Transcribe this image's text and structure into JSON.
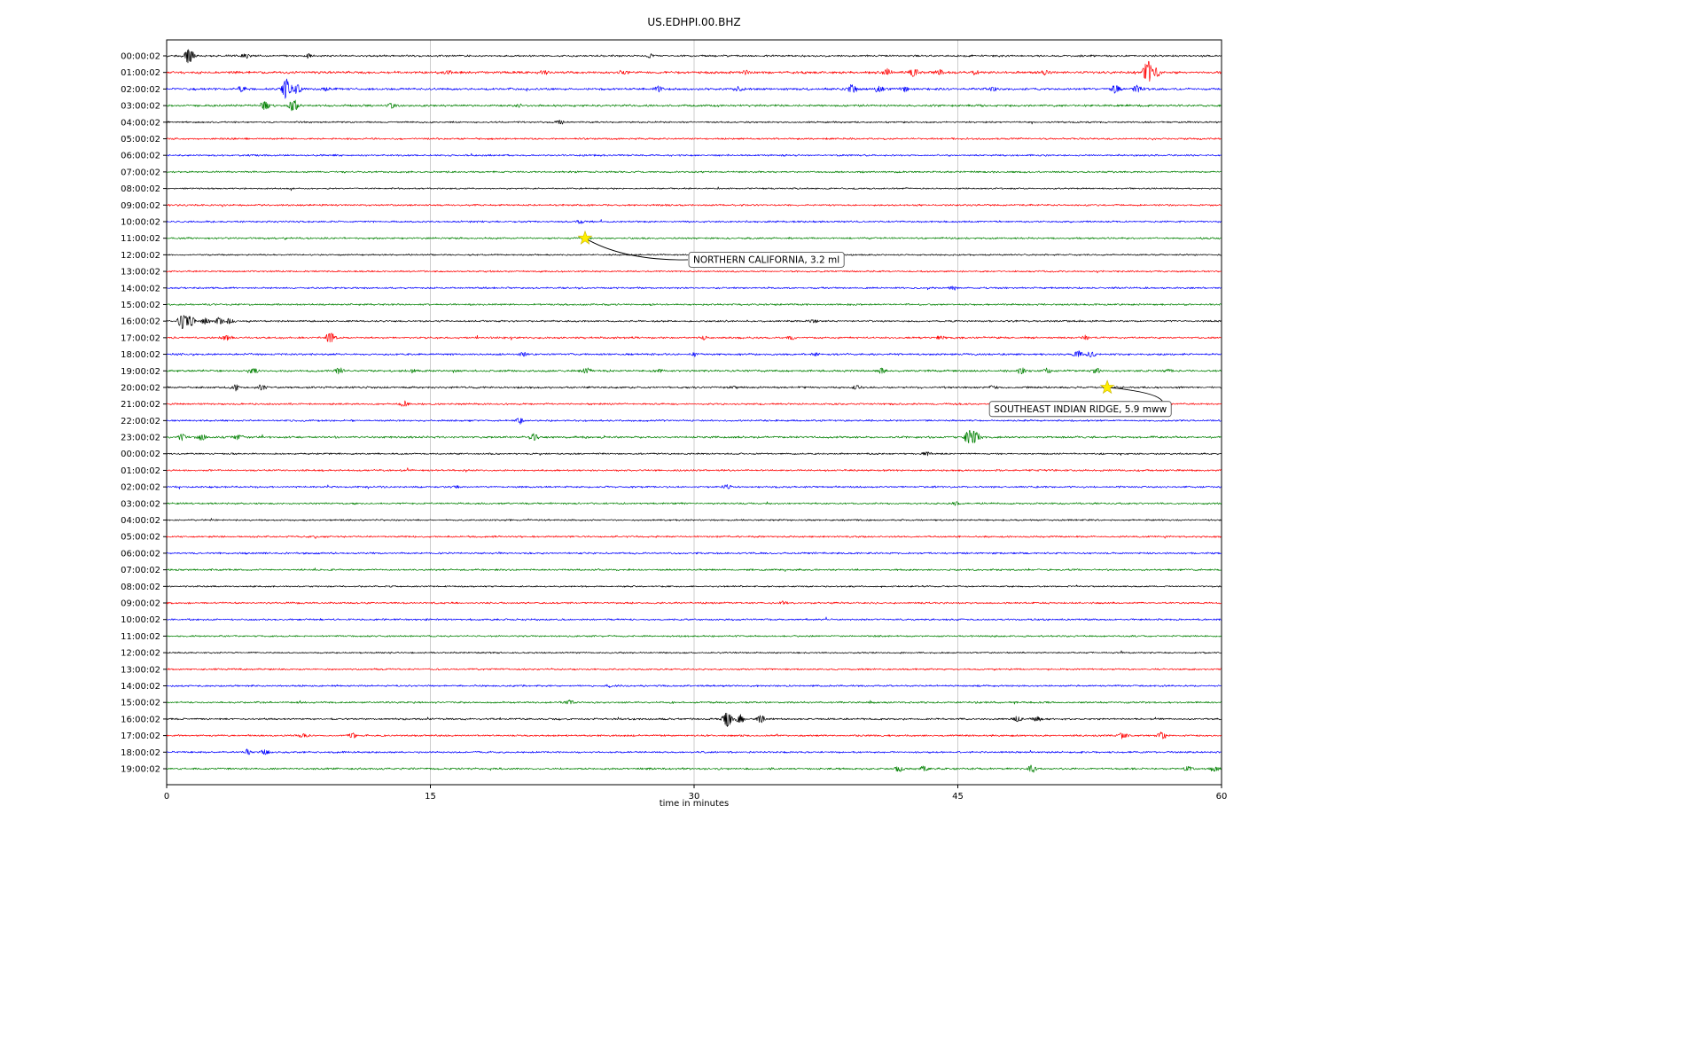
{
  "title": "US.EDHPI.00.BHZ",
  "chart_data": {
    "type": "line",
    "subtype": "seismogram_dayplot",
    "title": "US.EDHPI.00.BHZ",
    "station": "US.EDHPI.00.BHZ",
    "xlabel": "time in minutes",
    "x_tick_values": [
      0,
      15,
      30,
      45,
      60
    ],
    "x_range": [
      0,
      60
    ],
    "grid_on": true,
    "grid_minutes": [
      15,
      30,
      45
    ],
    "grid_color": "#c8c8c8",
    "trace_color_cycle": [
      "#000000",
      "#ff0000",
      "#0000ff",
      "#008000"
    ],
    "event_marker_color": "#ffee00",
    "rows": [
      {
        "label": "00:00:02",
        "color": "#000000",
        "amp": 1.3,
        "bursts": [
          [
            1.3,
            9
          ],
          [
            4.5,
            2.5
          ],
          [
            8,
            2
          ],
          [
            27.5,
            2.5
          ]
        ]
      },
      {
        "label": "01:00:02",
        "color": "#ff0000",
        "amp": 1.7,
        "bursts": [
          [
            16,
            2.5
          ],
          [
            21.5,
            2
          ],
          [
            26,
            2.5
          ],
          [
            33,
            2
          ],
          [
            41,
            4
          ],
          [
            42.5,
            5
          ],
          [
            44,
            3.5
          ],
          [
            46,
            2.5
          ],
          [
            50,
            2.5
          ],
          [
            55.8,
            13
          ],
          [
            56.3,
            5
          ]
        ]
      },
      {
        "label": "02:00:02",
        "color": "#0000ff",
        "amp": 1.5,
        "bursts": [
          [
            4.3,
            3
          ],
          [
            6.8,
            12
          ],
          [
            7.4,
            6
          ],
          [
            9,
            2.5
          ],
          [
            28,
            3
          ],
          [
            32.5,
            2.5
          ],
          [
            39,
            4.5
          ],
          [
            40.5,
            3.5
          ],
          [
            42,
            3
          ],
          [
            47,
            2
          ],
          [
            54,
            5
          ],
          [
            55.2,
            4
          ]
        ]
      },
      {
        "label": "03:00:02",
        "color": "#008000",
        "amp": 1.4,
        "bursts": [
          [
            5.6,
            6
          ],
          [
            7.2,
            7
          ],
          [
            12.8,
            3.5
          ],
          [
            20,
            1.5
          ]
        ]
      },
      {
        "label": "04:00:02",
        "color": "#000000",
        "amp": 1.1,
        "bursts": [
          [
            22.4,
            2.8
          ]
        ]
      },
      {
        "label": "05:00:02",
        "color": "#ff0000",
        "amp": 1.2,
        "bursts": []
      },
      {
        "label": "06:00:02",
        "color": "#0000ff",
        "amp": 1.2,
        "bursts": []
      },
      {
        "label": "07:00:02",
        "color": "#008000",
        "amp": 1.2,
        "bursts": []
      },
      {
        "label": "08:00:02",
        "color": "#000000",
        "amp": 1.0,
        "bursts": []
      },
      {
        "label": "09:00:02",
        "color": "#ff0000",
        "amp": 1.2,
        "bursts": []
      },
      {
        "label": "10:00:02",
        "color": "#0000ff",
        "amp": 1.2,
        "bursts": [
          [
            23.5,
            1.8
          ]
        ]
      },
      {
        "label": "11:00:02",
        "color": "#008000",
        "amp": 1.2,
        "bursts": [
          [
            23.8,
            2.2
          ]
        ]
      },
      {
        "label": "12:00:02",
        "color": "#000000",
        "amp": 1.0,
        "bursts": []
      },
      {
        "label": "13:00:02",
        "color": "#ff0000",
        "amp": 1.1,
        "bursts": []
      },
      {
        "label": "14:00:02",
        "color": "#0000ff",
        "amp": 1.2,
        "bursts": [
          [
            44.8,
            2.2
          ]
        ]
      },
      {
        "label": "15:00:02",
        "color": "#008000",
        "amp": 1.2,
        "bursts": []
      },
      {
        "label": "16:00:02",
        "color": "#000000",
        "amp": 1.2,
        "bursts": [
          [
            0.9,
            10
          ],
          [
            1.4,
            6
          ],
          [
            2.2,
            4
          ],
          [
            3,
            4
          ],
          [
            3.6,
            3
          ],
          [
            36.8,
            2.2
          ]
        ]
      },
      {
        "label": "17:00:02",
        "color": "#ff0000",
        "amp": 1.3,
        "bursts": [
          [
            3.4,
            3
          ],
          [
            9.3,
            6
          ],
          [
            30.5,
            2.2
          ],
          [
            35.5,
            2.5
          ],
          [
            44,
            2
          ],
          [
            52.3,
            2.5
          ]
        ]
      },
      {
        "label": "18:00:02",
        "color": "#0000ff",
        "amp": 1.3,
        "bursts": [
          [
            20.3,
            2.5
          ],
          [
            30,
            2.2
          ],
          [
            37,
            2
          ],
          [
            51.8,
            4.5
          ],
          [
            52.6,
            3.5
          ]
        ]
      },
      {
        "label": "19:00:02",
        "color": "#008000",
        "amp": 1.4,
        "bursts": [
          [
            4.9,
            3.5
          ],
          [
            9.8,
            3.5
          ],
          [
            14,
            2
          ],
          [
            23.9,
            3
          ],
          [
            28,
            2
          ],
          [
            40.7,
            3.2
          ],
          [
            48.6,
            3.5
          ],
          [
            50.1,
            3
          ],
          [
            52.9,
            2.8
          ],
          [
            57,
            2
          ]
        ]
      },
      {
        "label": "20:00:02",
        "color": "#000000",
        "amp": 1.3,
        "bursts": [
          [
            3.9,
            3.2
          ],
          [
            5.4,
            3
          ],
          [
            32.2,
            2.2
          ],
          [
            39.2,
            2
          ],
          [
            47,
            1.8
          ]
        ]
      },
      {
        "label": "21:00:02",
        "color": "#ff0000",
        "amp": 1.2,
        "bursts": [
          [
            13.5,
            2.8
          ]
        ]
      },
      {
        "label": "22:00:02",
        "color": "#0000ff",
        "amp": 1.2,
        "bursts": [
          [
            20.1,
            3.2
          ]
        ]
      },
      {
        "label": "23:00:02",
        "color": "#008000",
        "amp": 1.4,
        "bursts": [
          [
            0.9,
            3.5
          ],
          [
            2,
            3.5
          ],
          [
            4.1,
            3.2
          ],
          [
            20.9,
            4
          ],
          [
            45.6,
            8
          ],
          [
            46,
            6
          ]
        ]
      },
      {
        "label": "00:00:02",
        "color": "#000000",
        "amp": 1.1,
        "bursts": [
          [
            43.2,
            2.5
          ]
        ]
      },
      {
        "label": "01:00:02",
        "color": "#ff0000",
        "amp": 1.2,
        "bursts": []
      },
      {
        "label": "02:00:02",
        "color": "#0000ff",
        "amp": 1.2,
        "bursts": [
          [
            16.5,
            1.8
          ],
          [
            31.9,
            2.2
          ]
        ]
      },
      {
        "label": "03:00:02",
        "color": "#008000",
        "amp": 1.2,
        "bursts": [
          [
            44.9,
            2
          ]
        ]
      },
      {
        "label": "04:00:02",
        "color": "#000000",
        "amp": 1.0,
        "bursts": []
      },
      {
        "label": "05:00:02",
        "color": "#ff0000",
        "amp": 1.2,
        "bursts": []
      },
      {
        "label": "06:00:02",
        "color": "#0000ff",
        "amp": 1.2,
        "bursts": []
      },
      {
        "label": "07:00:02",
        "color": "#008000",
        "amp": 1.2,
        "bursts": []
      },
      {
        "label": "08:00:02",
        "color": "#000000",
        "amp": 1.0,
        "bursts": []
      },
      {
        "label": "09:00:02",
        "color": "#ff0000",
        "amp": 1.2,
        "bursts": [
          [
            35.1,
            1.8
          ]
        ]
      },
      {
        "label": "10:00:02",
        "color": "#0000ff",
        "amp": 1.2,
        "bursts": []
      },
      {
        "label": "11:00:02",
        "color": "#008000",
        "amp": 1.1,
        "bursts": []
      },
      {
        "label": "12:00:02",
        "color": "#000000",
        "amp": 1.0,
        "bursts": []
      },
      {
        "label": "13:00:02",
        "color": "#ff0000",
        "amp": 1.1,
        "bursts": []
      },
      {
        "label": "14:00:02",
        "color": "#0000ff",
        "amp": 1.2,
        "bursts": [
          [
            25.2,
            1.8
          ]
        ]
      },
      {
        "label": "15:00:02",
        "color": "#008000",
        "amp": 1.2,
        "bursts": [
          [
            22.9,
            3.2
          ]
        ]
      },
      {
        "label": "16:00:02",
        "color": "#000000",
        "amp": 1.2,
        "bursts": [
          [
            31.9,
            9
          ],
          [
            32.6,
            5
          ],
          [
            33.8,
            4
          ],
          [
            48.4,
            3.2
          ],
          [
            49.5,
            3
          ]
        ]
      },
      {
        "label": "17:00:02",
        "color": "#ff0000",
        "amp": 1.2,
        "bursts": [
          [
            7.8,
            2.5
          ],
          [
            10.6,
            3.2
          ],
          [
            54.4,
            3.2
          ],
          [
            56.6,
            4
          ]
        ]
      },
      {
        "label": "18:00:02",
        "color": "#0000ff",
        "amp": 1.2,
        "bursts": [
          [
            4.6,
            3
          ],
          [
            5.6,
            3
          ]
        ]
      },
      {
        "label": "19:00:02",
        "color": "#008000",
        "amp": 1.3,
        "bursts": [
          [
            41.6,
            3.5
          ],
          [
            43.1,
            3
          ],
          [
            49.2,
            4.2
          ],
          [
            58.1,
            3
          ],
          [
            59.6,
            3.2
          ]
        ]
      }
    ],
    "events": [
      {
        "label": "NORTHERN CALIFORNIA, 3.2 ml",
        "row": 11,
        "minute": 23.8,
        "box_minute": 29.7,
        "box_row_offset": 1.3,
        "box_side": "left"
      },
      {
        "label": "SOUTHEAST INDIAN RIDGE, 5.9 mww",
        "row": 20,
        "minute": 53.5,
        "box_minute": 46.8,
        "box_row_offset": 1.3,
        "box_side": "right"
      }
    ]
  }
}
